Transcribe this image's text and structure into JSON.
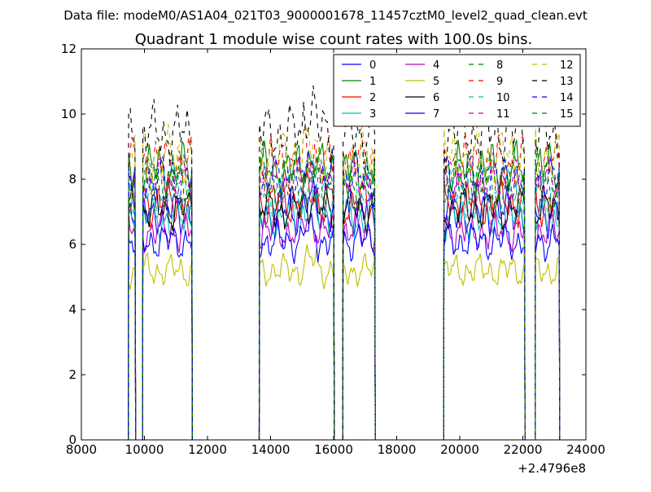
{
  "suptitle": "Data file: modeM0/AS1A04_021T03_9000001678_11457cztM0_level2_quad_clean.evt",
  "chart_data": {
    "type": "line",
    "title": "Quadrant 1 module wise count rates with 100.0s bins.",
    "xlabel": "",
    "ylabel": "",
    "x_offset_label": "+2.4796e8",
    "xlim": [
      8000,
      24000
    ],
    "ylim": [
      0,
      12
    ],
    "xticks": [
      8000,
      10000,
      12000,
      14000,
      16000,
      18000,
      20000,
      22000,
      24000
    ],
    "xtick_labels": [
      "8000",
      "10000",
      "12000",
      "14000",
      "16000",
      "18000",
      "20000",
      "22000",
      "24000"
    ],
    "yticks": [
      0,
      2,
      4,
      6,
      8,
      10,
      12
    ],
    "ytick_labels": [
      "0",
      "2",
      "4",
      "6",
      "8",
      "10",
      "12"
    ],
    "grid": false,
    "legend_position": "top-right",
    "legend_columns": 4,
    "segments": [
      {
        "start": 9500,
        "end": 9700
      },
      {
        "start": 9950,
        "end": 11500
      },
      {
        "start": 13650,
        "end": 16000
      },
      {
        "start": 16300,
        "end": 17300
      },
      {
        "start": 19500,
        "end": 22050
      },
      {
        "start": 22400,
        "end": 23150
      }
    ],
    "zero_gaps": [
      [
        9750,
        9950
      ],
      [
        11550,
        13600
      ],
      [
        16050,
        16300
      ],
      [
        17350,
        19450
      ],
      [
        22100,
        22400
      ]
    ],
    "series": [
      {
        "name": "0",
        "color": "#0000ff",
        "dash": "solid",
        "level": 7.0
      },
      {
        "name": "1",
        "color": "#008000",
        "dash": "solid",
        "level": 8.3
      },
      {
        "name": "2",
        "color": "#ff0000",
        "dash": "solid",
        "level": 7.3
      },
      {
        "name": "3",
        "color": "#00bfbf",
        "dash": "solid",
        "level": 6.8
      },
      {
        "name": "4",
        "color": "#bf00bf",
        "dash": "solid",
        "level": 6.4
      },
      {
        "name": "5",
        "color": "#bfbf00",
        "dash": "solid",
        "level": 5.2
      },
      {
        "name": "6",
        "color": "#000000",
        "dash": "solid",
        "level": 7.1
      },
      {
        "name": "7",
        "color": "#0000ff",
        "dash": "solid",
        "level": 6.1
      },
      {
        "name": "8",
        "color": "#008000",
        "dash": "dashed",
        "level": 8.1
      },
      {
        "name": "9",
        "color": "#ff0000",
        "dash": "dashed",
        "level": 8.5
      },
      {
        "name": "10",
        "color": "#00bfbf",
        "dash": "dashed",
        "level": 7.6
      },
      {
        "name": "11",
        "color": "#bf00bf",
        "dash": "dashed",
        "level": 7.9
      },
      {
        "name": "12",
        "color": "#bfbf00",
        "dash": "dashed",
        "level": 8.7
      },
      {
        "name": "13",
        "color": "#000000",
        "dash": "dashed",
        "level": 9.4
      },
      {
        "name": "14",
        "color": "#0000ff",
        "dash": "dashed",
        "level": 8.0
      },
      {
        "name": "15",
        "color": "#008000",
        "dash": "dashed",
        "level": 7.8
      }
    ]
  }
}
